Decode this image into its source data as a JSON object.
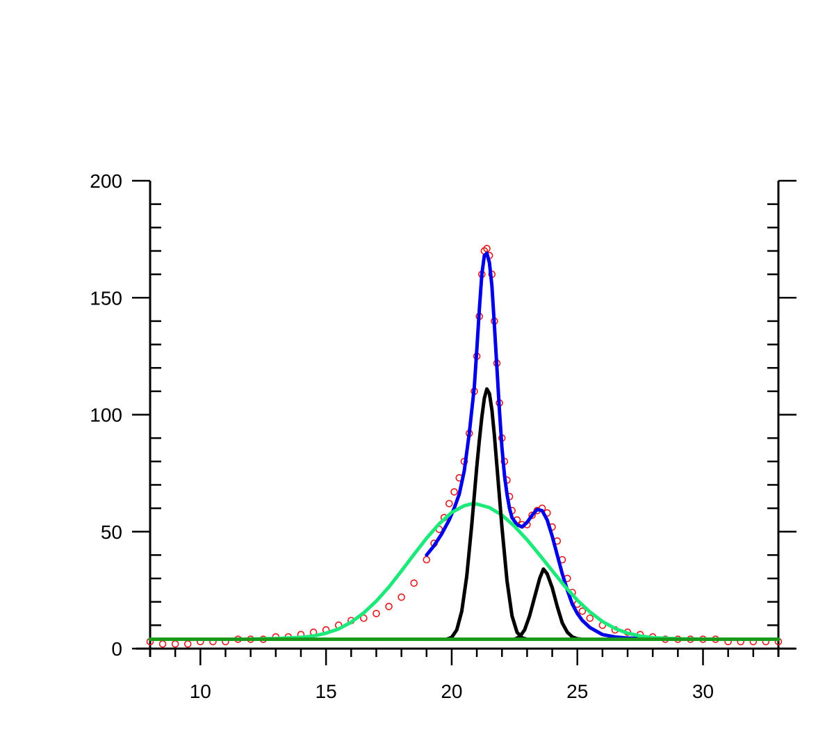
{
  "chart_data": {
    "type": "line",
    "title": "",
    "xlabel": "",
    "ylabel": "",
    "xlim": [
      8,
      33
    ],
    "ylim": [
      0,
      200
    ],
    "x_ticks": [
      10,
      15,
      20,
      25,
      30
    ],
    "x_tick_labels": [
      "10",
      "15",
      "20",
      "25",
      "30"
    ],
    "y_ticks": [
      0,
      50,
      100,
      150,
      200
    ],
    "y_tick_labels": [
      "0",
      "50",
      "100",
      "150",
      "200"
    ],
    "x_minor_step": 1,
    "y_minor_step": 10,
    "grid": false,
    "legend": "none",
    "series": [
      {
        "kind": "scatter-open-circles",
        "color": "#e31a1c",
        "points": [
          [
            8.0,
            3
          ],
          [
            8.5,
            2
          ],
          [
            9.0,
            2
          ],
          [
            9.5,
            2
          ],
          [
            10.0,
            3
          ],
          [
            10.5,
            3
          ],
          [
            11.0,
            3
          ],
          [
            11.5,
            4
          ],
          [
            12.0,
            4
          ],
          [
            12.5,
            4
          ],
          [
            13.0,
            5
          ],
          [
            13.5,
            5
          ],
          [
            14.0,
            6
          ],
          [
            14.5,
            7
          ],
          [
            15.0,
            8
          ],
          [
            15.5,
            10
          ],
          [
            16.0,
            12
          ],
          [
            16.5,
            13
          ],
          [
            17.0,
            15
          ],
          [
            17.5,
            18
          ],
          [
            18.0,
            22
          ],
          [
            18.5,
            28
          ],
          [
            19.0,
            38
          ],
          [
            19.3,
            45
          ],
          [
            19.5,
            51
          ],
          [
            19.7,
            56
          ],
          [
            19.9,
            62
          ],
          [
            20.1,
            67
          ],
          [
            20.3,
            73
          ],
          [
            20.5,
            80
          ],
          [
            20.7,
            92
          ],
          [
            20.9,
            110
          ],
          [
            21.0,
            125
          ],
          [
            21.1,
            142
          ],
          [
            21.2,
            160
          ],
          [
            21.3,
            170
          ],
          [
            21.4,
            171
          ],
          [
            21.5,
            168
          ],
          [
            21.6,
            160
          ],
          [
            21.7,
            140
          ],
          [
            21.8,
            122
          ],
          [
            21.9,
            105
          ],
          [
            22.0,
            90
          ],
          [
            22.1,
            80
          ],
          [
            22.2,
            72
          ],
          [
            22.3,
            65
          ],
          [
            22.4,
            59
          ],
          [
            22.6,
            55
          ],
          [
            22.8,
            53
          ],
          [
            23.0,
            53
          ],
          [
            23.2,
            57
          ],
          [
            23.4,
            59
          ],
          [
            23.6,
            60
          ],
          [
            23.8,
            58
          ],
          [
            24.0,
            52
          ],
          [
            24.2,
            46
          ],
          [
            24.4,
            38
          ],
          [
            24.6,
            30
          ],
          [
            24.8,
            24
          ],
          [
            25.0,
            19
          ],
          [
            25.2,
            16
          ],
          [
            25.5,
            13
          ],
          [
            26.0,
            10
          ],
          [
            26.5,
            8
          ],
          [
            27.0,
            7
          ],
          [
            27.5,
            6
          ],
          [
            28.0,
            5
          ],
          [
            28.5,
            4
          ],
          [
            29.0,
            4
          ],
          [
            29.5,
            4
          ],
          [
            30.0,
            4
          ],
          [
            30.5,
            4
          ],
          [
            31.0,
            3
          ],
          [
            31.5,
            3
          ],
          [
            32.0,
            3
          ],
          [
            32.5,
            3
          ],
          [
            33.0,
            3
          ]
        ]
      },
      {
        "kind": "line",
        "color": "#0000e6",
        "role": "fit-envelope",
        "points": [
          [
            19.0,
            40
          ],
          [
            19.3,
            44
          ],
          [
            19.6,
            49
          ],
          [
            19.9,
            55
          ],
          [
            20.1,
            60
          ],
          [
            20.3,
            66
          ],
          [
            20.5,
            76
          ],
          [
            20.7,
            92
          ],
          [
            20.9,
            112
          ],
          [
            21.0,
            128
          ],
          [
            21.1,
            145
          ],
          [
            21.2,
            160
          ],
          [
            21.3,
            168
          ],
          [
            21.4,
            169
          ],
          [
            21.5,
            165
          ],
          [
            21.6,
            155
          ],
          [
            21.7,
            138
          ],
          [
            21.8,
            120
          ],
          [
            21.9,
            102
          ],
          [
            22.0,
            86
          ],
          [
            22.1,
            74
          ],
          [
            22.2,
            66
          ],
          [
            22.3,
            60
          ],
          [
            22.4,
            56
          ],
          [
            22.6,
            53
          ],
          [
            22.8,
            52
          ],
          [
            23.0,
            54
          ],
          [
            23.2,
            57
          ],
          [
            23.4,
            59.5
          ],
          [
            23.6,
            59
          ],
          [
            23.8,
            55
          ],
          [
            24.0,
            48
          ],
          [
            24.2,
            40
          ],
          [
            24.4,
            32
          ],
          [
            24.6,
            25
          ],
          [
            24.8,
            19
          ],
          [
            25.0,
            15
          ],
          [
            25.2,
            12
          ],
          [
            25.5,
            9
          ],
          [
            26.0,
            6
          ],
          [
            26.5,
            5
          ],
          [
            27.0,
            4.5
          ],
          [
            28.0,
            4.2
          ],
          [
            29.0,
            4.1
          ],
          [
            30.0,
            4
          ],
          [
            31.0,
            4
          ],
          [
            32.0,
            4
          ],
          [
            33.0,
            4
          ]
        ]
      },
      {
        "kind": "line",
        "color": "#1de87a",
        "role": "broad-gaussian",
        "points": [
          [
            12.0,
            4.1
          ],
          [
            13.0,
            4.3
          ],
          [
            14.0,
            4.8
          ],
          [
            14.5,
            5.4
          ],
          [
            15.0,
            6.6
          ],
          [
            15.5,
            8.4
          ],
          [
            16.0,
            11.3
          ],
          [
            16.5,
            15.3
          ],
          [
            17.0,
            20.3
          ],
          [
            17.5,
            26.3
          ],
          [
            18.0,
            33.2
          ],
          [
            18.5,
            40.3
          ],
          [
            19.0,
            47.2
          ],
          [
            19.5,
            53.3
          ],
          [
            20.0,
            58.2
          ],
          [
            20.5,
            61.1
          ],
          [
            20.8,
            61.9
          ],
          [
            21.0,
            61.8
          ],
          [
            21.5,
            60.3
          ],
          [
            22.0,
            57.1
          ],
          [
            22.5,
            52.3
          ],
          [
            23.0,
            46.5
          ],
          [
            23.5,
            40.0
          ],
          [
            24.0,
            33.3
          ],
          [
            24.5,
            26.7
          ],
          [
            25.0,
            20.7
          ],
          [
            25.5,
            15.7
          ],
          [
            26.0,
            11.6
          ],
          [
            26.5,
            8.6
          ],
          [
            27.0,
            6.6
          ],
          [
            27.5,
            5.4
          ],
          [
            28.0,
            4.7
          ],
          [
            29.0,
            4.2
          ],
          [
            30.0,
            4.05
          ],
          [
            33.0,
            4.0
          ]
        ]
      },
      {
        "kind": "line",
        "color": "#000000",
        "role": "narrow-gaussian-1",
        "points": [
          [
            19.8,
            4
          ],
          [
            20.0,
            4.8
          ],
          [
            20.2,
            8
          ],
          [
            20.4,
            16
          ],
          [
            20.6,
            31
          ],
          [
            20.8,
            53
          ],
          [
            21.0,
            78
          ],
          [
            21.1,
            89
          ],
          [
            21.2,
            99
          ],
          [
            21.3,
            107
          ],
          [
            21.4,
            111
          ],
          [
            21.5,
            109
          ],
          [
            21.6,
            102
          ],
          [
            21.7,
            91
          ],
          [
            21.8,
            78
          ],
          [
            22.0,
            52
          ],
          [
            22.2,
            29
          ],
          [
            22.4,
            14
          ],
          [
            22.6,
            7
          ],
          [
            22.8,
            4.6
          ],
          [
            23.0,
            4
          ]
        ]
      },
      {
        "kind": "line",
        "color": "#000000",
        "role": "narrow-gaussian-2",
        "points": [
          [
            22.5,
            4
          ],
          [
            22.7,
            5
          ],
          [
            22.9,
            8
          ],
          [
            23.1,
            14
          ],
          [
            23.3,
            22
          ],
          [
            23.5,
            30
          ],
          [
            23.65,
            34
          ],
          [
            23.8,
            32
          ],
          [
            24.0,
            26
          ],
          [
            24.2,
            18
          ],
          [
            24.4,
            11
          ],
          [
            24.6,
            7
          ],
          [
            24.8,
            5
          ],
          [
            25.0,
            4.2
          ],
          [
            25.2,
            4
          ]
        ]
      },
      {
        "kind": "line",
        "color": "#1a9a1a",
        "role": "baseline",
        "points": [
          [
            8,
            4
          ],
          [
            33,
            4
          ]
        ]
      }
    ]
  }
}
